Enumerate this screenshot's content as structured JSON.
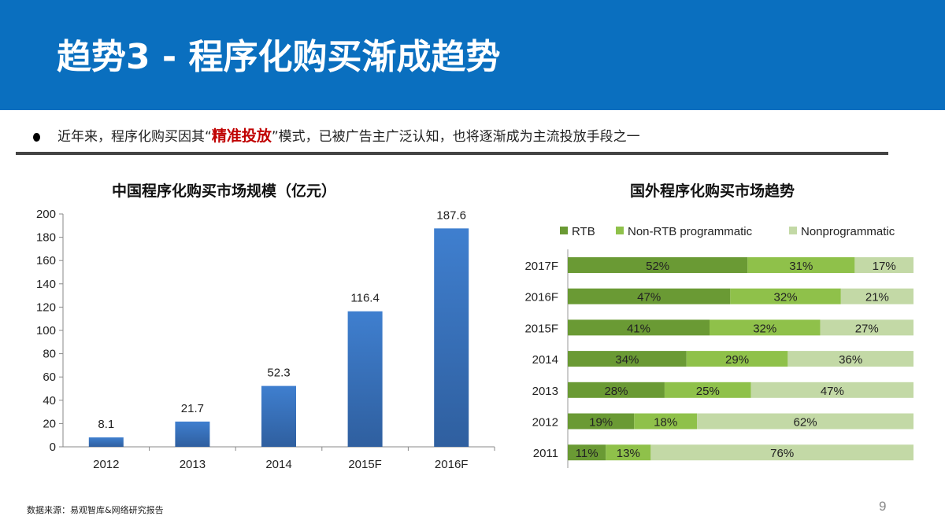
{
  "header": {
    "title": "趋势3 - 程序化购买渐成趋势"
  },
  "bullet": {
    "before": "近年来，程序化购买因其“",
    "highlight": "精准投放",
    "after": "”模式，已被广告主广泛认知，也将逐渐成为主流投放手段之一",
    "highlight_color": "#c00000"
  },
  "footer": {
    "source": "数据来源：易观智库&网络研究报告",
    "page": "9"
  },
  "chart_data": [
    {
      "type": "bar",
      "title": "中国程序化购买市场规模（亿元）",
      "categories": [
        "2012",
        "2013",
        "2014",
        "2015F",
        "2016F"
      ],
      "values": [
        8.1,
        21.7,
        52.3,
        116.4,
        187.6
      ],
      "data_labels": [
        "8.1",
        "21.7",
        "52.3",
        "116.4",
        "187.6"
      ],
      "ylim": [
        0,
        200
      ],
      "yticks": [
        "0",
        "20",
        "40",
        "60",
        "80",
        "100",
        "120",
        "140",
        "160",
        "180",
        "200"
      ],
      "color": "#3a6fb8",
      "grid": false
    },
    {
      "type": "bar",
      "orientation": "horizontal",
      "stacked": true,
      "title": "国外程序化购买市场趋势",
      "legend": "top",
      "categories": [
        "2017F",
        "2016F",
        "2015F",
        "2014",
        "2013",
        "2012",
        "2011"
      ],
      "series": [
        {
          "name": "RTB",
          "color": "#6a9a34",
          "values": [
            52,
            47,
            41,
            34,
            28,
            19,
            11
          ]
        },
        {
          "name": "Non-RTB programmatic",
          "color": "#8fc14a",
          "values": [
            31,
            32,
            32,
            29,
            25,
            18,
            13
          ]
        },
        {
          "name": "Nonprogrammatic",
          "color": "#c3d9a6",
          "values": [
            17,
            21,
            27,
            36,
            47,
            62,
            76
          ]
        }
      ],
      "xlim": [
        0,
        100
      ],
      "unit": "%"
    }
  ]
}
